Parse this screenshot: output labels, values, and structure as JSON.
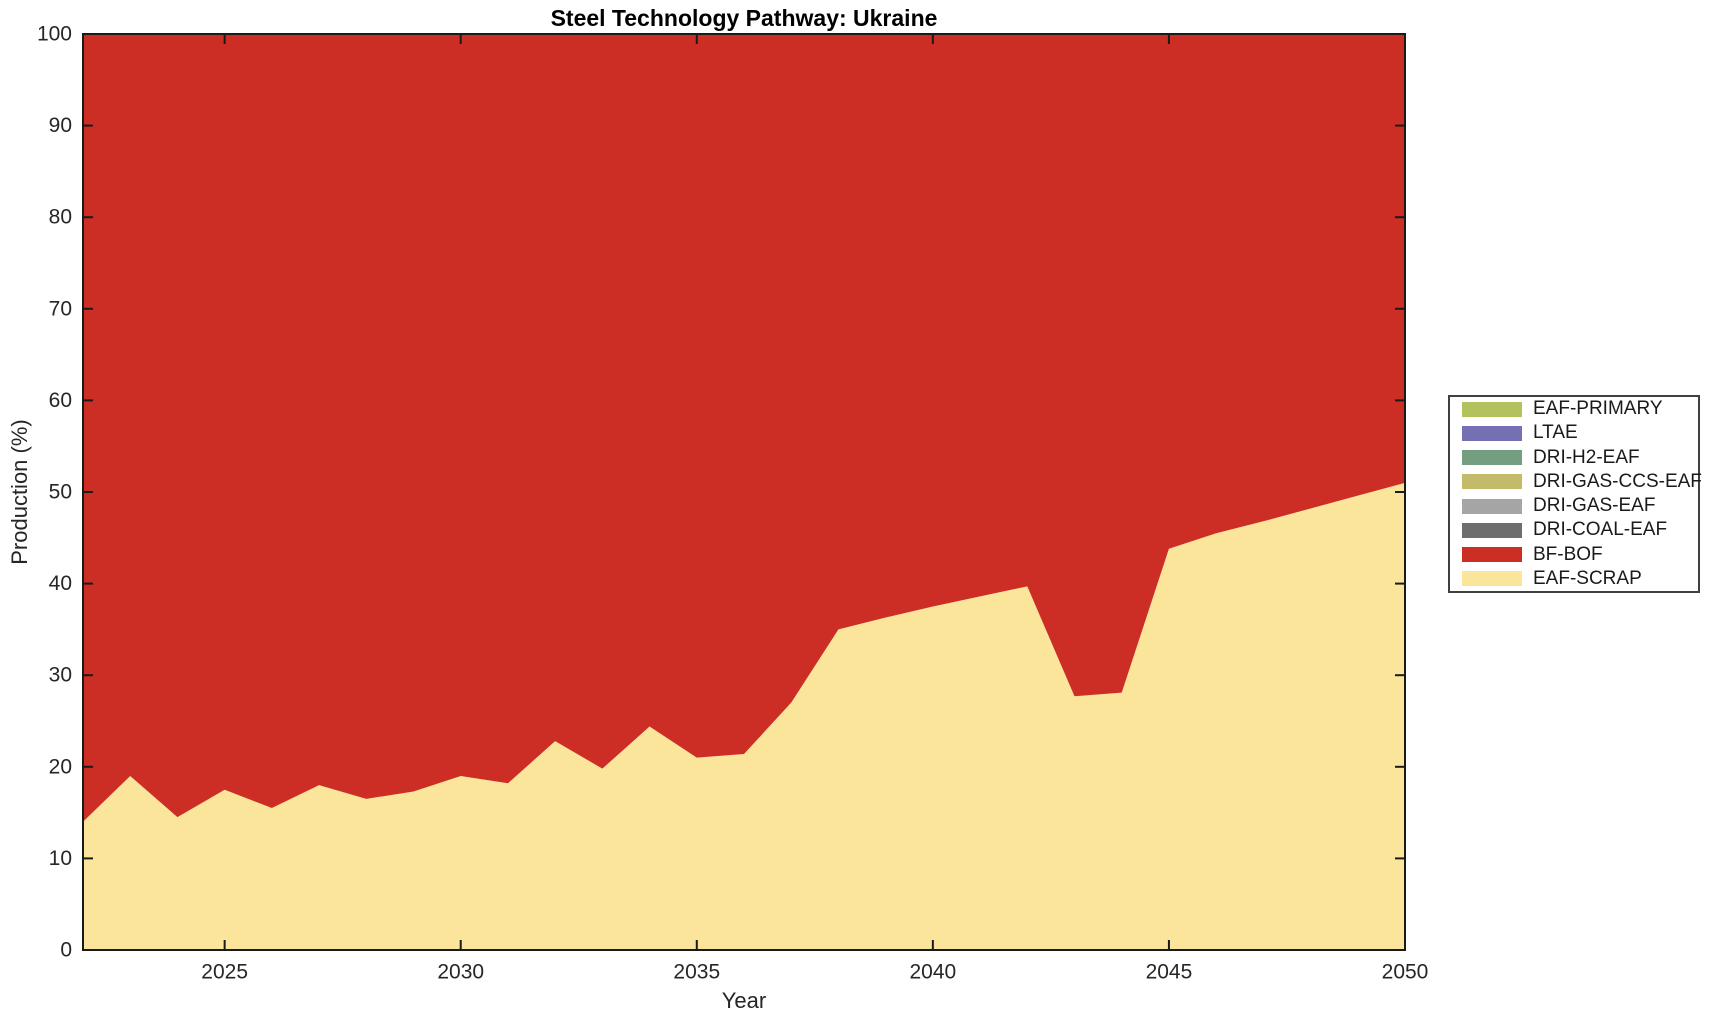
{
  "title": "Steel Technology Pathway: Ukraine",
  "chart_data": {
    "type": "area",
    "stacked": true,
    "title": "Steel Technology Pathway: Ukraine",
    "xlabel": "Year",
    "ylabel": "Production (%)",
    "xlim": [
      2022,
      2050
    ],
    "ylim": [
      0,
      100
    ],
    "x_ticks": [
      2025,
      2030,
      2035,
      2040,
      2045,
      2050
    ],
    "y_ticks": [
      0,
      10,
      20,
      30,
      40,
      50,
      60,
      70,
      80,
      90,
      100
    ],
    "grid": false,
    "legend_position": "outside-right",
    "x": [
      2022,
      2023,
      2024,
      2025,
      2026,
      2027,
      2028,
      2029,
      2030,
      2031,
      2032,
      2033,
      2034,
      2035,
      2036,
      2037,
      2038,
      2039,
      2040,
      2041,
      2042,
      2043,
      2044,
      2045,
      2046,
      2047,
      2048,
      2049,
      2050
    ],
    "stack_order_bottom_to_top": [
      "EAF-SCRAP",
      "BF-BOF",
      "DRI-COAL-EAF",
      "DRI-GAS-EAF",
      "DRI-GAS-CCS-EAF",
      "DRI-H2-EAF",
      "LTAE",
      "EAF-PRIMARY"
    ],
    "series": [
      {
        "name": "EAF-PRIMARY",
        "color": "#b4c25e",
        "values": [
          0,
          0,
          0,
          0,
          0,
          0,
          0,
          0,
          0,
          0,
          0,
          0,
          0,
          0,
          0,
          0,
          0,
          0,
          0,
          0,
          0,
          0,
          0,
          0,
          0,
          0,
          0,
          0,
          0
        ]
      },
      {
        "name": "LTAE",
        "color": "#7570b3",
        "values": [
          0,
          0,
          0,
          0,
          0,
          0,
          0,
          0,
          0,
          0,
          0,
          0,
          0,
          0,
          0,
          0,
          0,
          0,
          0,
          0,
          0,
          0,
          0,
          0,
          0,
          0,
          0,
          0,
          0
        ]
      },
      {
        "name": "DRI-H2-EAF",
        "color": "#739e80",
        "values": [
          0,
          0,
          0,
          0,
          0,
          0,
          0,
          0,
          0,
          0,
          0,
          0,
          0,
          0,
          0,
          0,
          0,
          0,
          0,
          0,
          0,
          0,
          0,
          0,
          0,
          0,
          0,
          0,
          0
        ]
      },
      {
        "name": "DRI-GAS-CCS-EAF",
        "color": "#c3ba6a",
        "values": [
          0,
          0,
          0,
          0,
          0,
          0,
          0,
          0,
          0,
          0,
          0,
          0,
          0,
          0,
          0,
          0,
          0,
          0,
          0,
          0,
          0,
          0,
          0,
          0,
          0,
          0,
          0,
          0,
          0
        ]
      },
      {
        "name": "DRI-GAS-EAF",
        "color": "#a5a5a5",
        "values": [
          0,
          0,
          0,
          0,
          0,
          0,
          0,
          0,
          0,
          0,
          0,
          0,
          0,
          0,
          0,
          0,
          0,
          0,
          0,
          0,
          0,
          0,
          0,
          0,
          0,
          0,
          0,
          0,
          0
        ]
      },
      {
        "name": "DRI-COAL-EAF",
        "color": "#6e6e6e",
        "values": [
          0,
          0,
          0,
          0,
          0,
          0,
          0,
          0,
          0,
          0,
          0,
          0,
          0,
          0,
          0,
          0,
          0,
          0,
          0,
          0,
          0,
          0,
          0,
          0,
          0,
          0,
          0,
          0,
          0
        ]
      },
      {
        "name": "BF-BOF",
        "color": "#cc2d25",
        "values": [
          86,
          81,
          85.5,
          82.5,
          84.5,
          82,
          83.5,
          82.7,
          81,
          81.8,
          77.2,
          80.2,
          75.6,
          79,
          78.6,
          73,
          65,
          63.7,
          62.5,
          61.4,
          60.3,
          72.3,
          71.9,
          56.2,
          54.5,
          53.2,
          51.8,
          50.4,
          49
        ]
      },
      {
        "name": "EAF-SCRAP",
        "color": "#fbe59a",
        "values": [
          14,
          19,
          14.5,
          17.5,
          15.5,
          18,
          16.5,
          17.3,
          19,
          18.2,
          22.8,
          19.8,
          24.4,
          21,
          21.4,
          27,
          35,
          36.3,
          37.5,
          38.6,
          39.7,
          27.7,
          28.1,
          43.8,
          45.5,
          46.8,
          48.2,
          49.6,
          51
        ]
      }
    ]
  },
  "axis": {
    "tick_color": "#262626",
    "box_color": "#1a1a1a"
  }
}
